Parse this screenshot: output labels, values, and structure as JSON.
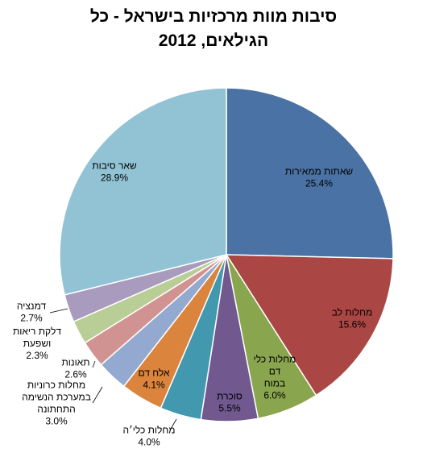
{
  "chart_data": {
    "type": "pie",
    "title": "סיבות מוות מרכזיות בישראל - כל הגילאים,  2012",
    "title_lines": [
      "סיבות מוות מרכזיות בישראל - כל",
      "הגילאים,  2012"
    ],
    "start_angle": "12 o'clock",
    "direction": "clockwise",
    "slices": [
      {
        "label": "שאתות ממאירות",
        "value": 25.4,
        "value_label": "25.4%",
        "color": "#4a72a5"
      },
      {
        "label": "מחלות לב",
        "value": 15.6,
        "value_label": "15.6%",
        "color": "#aa4643"
      },
      {
        "label": "מחלות כלי דם במוח",
        "value": 6.0,
        "value_label": "6.0%",
        "color": "#89a54e"
      },
      {
        "label": "סוכרת",
        "value": 5.5,
        "value_label": "5.5%",
        "color": "#71588f"
      },
      {
        "label": "מחלות כלי׳ה",
        "value": 4.0,
        "value_label": "4.0%",
        "color": "#4198af"
      },
      {
        "label": "אלח דם",
        "value": 4.1,
        "value_label": "4.1%",
        "color": "#db843d"
      },
      {
        "label": "מחלות כרוניות במערכת הנשימה התחתונה",
        "value": 3.0,
        "value_label": "3.0%",
        "color": "#93a9cf"
      },
      {
        "label": "תאונות",
        "value": 2.6,
        "value_label": "2.6%",
        "color": "#d19392"
      },
      {
        "label": "דלקת ריאות ושפעת",
        "value": 2.3,
        "value_label": "2.3%",
        "color": "#b9cd96"
      },
      {
        "label": "דמנציה",
        "value": 2.7,
        "value_label": "2.7%",
        "color": "#a99bbd"
      },
      {
        "label": "שאר סיבות",
        "value": 28.9,
        "value_label": "28.9%",
        "color": "#92c3d4"
      }
    ]
  }
}
